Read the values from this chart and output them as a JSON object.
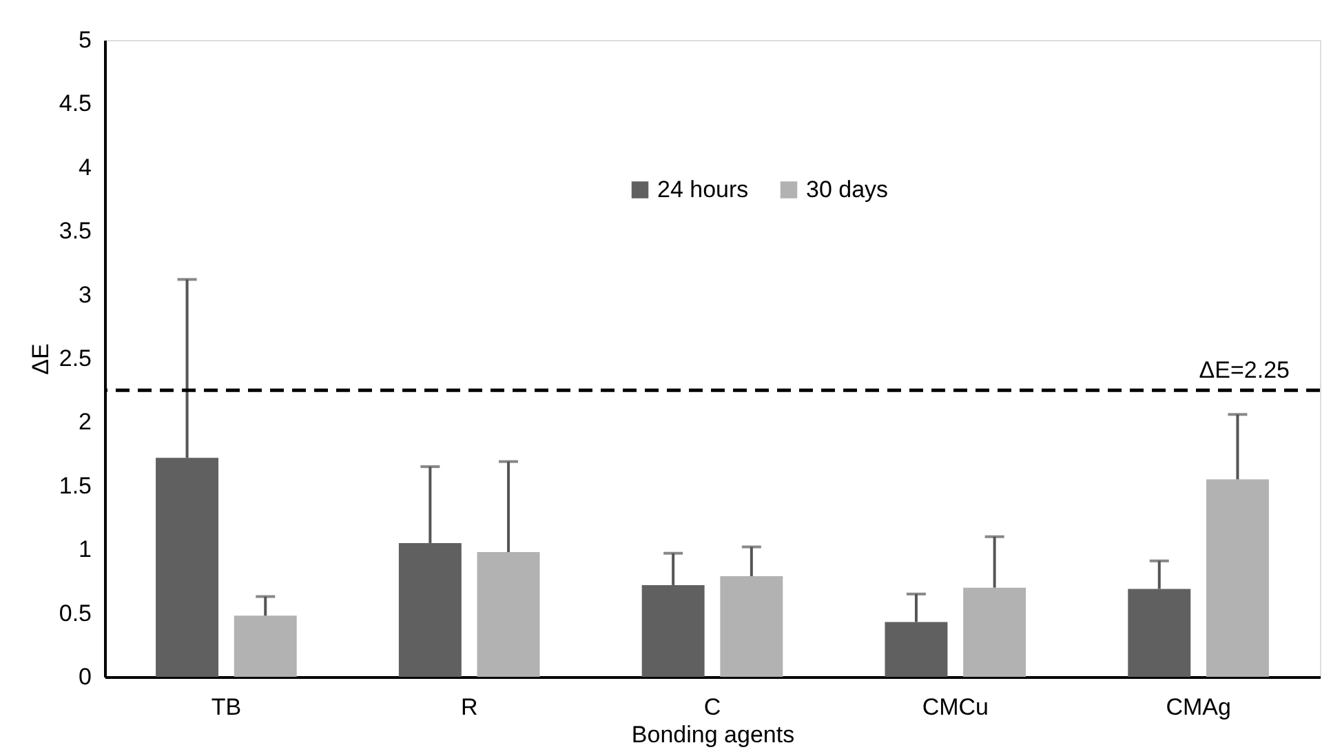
{
  "chart_data": {
    "type": "bar",
    "xlabel": "Bonding agents",
    "ylabel": "ΔE",
    "categories": [
      "TB",
      "R",
      "C",
      "CMCu",
      "CMAg"
    ],
    "series": [
      {
        "name": "24 hours",
        "color": "#606060",
        "values": [
          1.72,
          1.05,
          0.72,
          0.43,
          0.69
        ],
        "errors": [
          1.4,
          0.6,
          0.25,
          0.22,
          0.22
        ]
      },
      {
        "name": "30 days",
        "color": "#b2b2b2",
        "values": [
          0.48,
          0.98,
          0.79,
          0.7,
          1.55
        ],
        "errors": [
          0.15,
          0.71,
          0.23,
          0.4,
          0.51
        ]
      }
    ],
    "ylim": [
      0,
      5
    ],
    "yticks": [
      0,
      0.5,
      1,
      1.5,
      2,
      2.5,
      3,
      3.5,
      4,
      4.5,
      5
    ],
    "ref_lines": [
      {
        "axis": "y",
        "value": 2.25,
        "label": "ΔE=2.25",
        "color": "#000000",
        "line_style": "dashed"
      }
    ],
    "legend": "top",
    "grid": false
  }
}
